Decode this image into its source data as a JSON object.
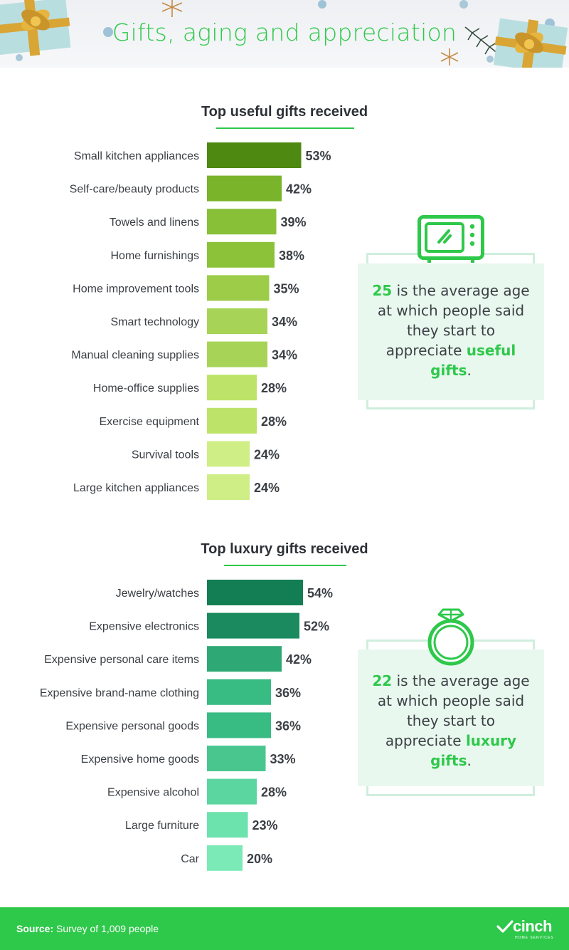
{
  "header": {
    "title": "Gifts, aging and appreciation"
  },
  "colors": {
    "accent": "#2ec84a",
    "footer_bg": "#2ec84a",
    "useful_bars": [
      "#4e8a12",
      "#79b42a",
      "#88c038",
      "#8bc23a",
      "#9ccc48",
      "#a7d456",
      "#a7d456",
      "#bde469",
      "#bde469",
      "#cfee86",
      "#cfee86"
    ],
    "luxury_bars": [
      "#137e54",
      "#1c8a5f",
      "#2ea874",
      "#39bb84",
      "#39bb84",
      "#48c68e",
      "#5bd6a0",
      "#6ce2ad",
      "#7beab6"
    ]
  },
  "icons": {
    "useful": "microwave-icon",
    "luxury": "diamond-ring-icon",
    "logo": "cinch-check-icon"
  },
  "chart_data": [
    {
      "type": "bar",
      "orientation": "horizontal",
      "title": "Top useful gifts received",
      "categories": [
        "Small kitchen appliances",
        "Self-care/beauty products",
        "Towels and linens",
        "Home furnishings",
        "Home improvement tools",
        "Smart technology",
        "Manual cleaning supplies",
        "Home-office supplies",
        "Exercise equipment",
        "Survival tools",
        "Large kitchen appliances"
      ],
      "values": [
        53,
        42,
        39,
        38,
        35,
        34,
        34,
        28,
        28,
        24,
        24
      ],
      "unit": "%",
      "grid": false
    },
    {
      "type": "bar",
      "orientation": "horizontal",
      "title": "Top luxury gifts received",
      "categories": [
        "Jewelry/watches",
        "Expensive electronics",
        "Expensive personal care items",
        "Expensive brand-name clothing",
        "Expensive personal goods",
        "Expensive home goods",
        "Expensive alcohol",
        "Large furniture",
        "Car"
      ],
      "values": [
        54,
        52,
        42,
        36,
        36,
        33,
        28,
        23,
        20
      ],
      "unit": "%",
      "grid": false
    }
  ],
  "callouts": {
    "useful": {
      "age": "25",
      "text_before": "is the average age at which people said they start to appreciate",
      "highlight": "useful gifts",
      "text_after": "."
    },
    "luxury": {
      "age": "22",
      "text_before": "is the average age at which people said they start to appreciate",
      "highlight": "luxury gifts",
      "text_after": "."
    }
  },
  "footer": {
    "source_label": "Source:",
    "source_text": "Survey of 1,009 people",
    "logo_text": "cinch",
    "logo_sub": "HOME SERVICES"
  }
}
